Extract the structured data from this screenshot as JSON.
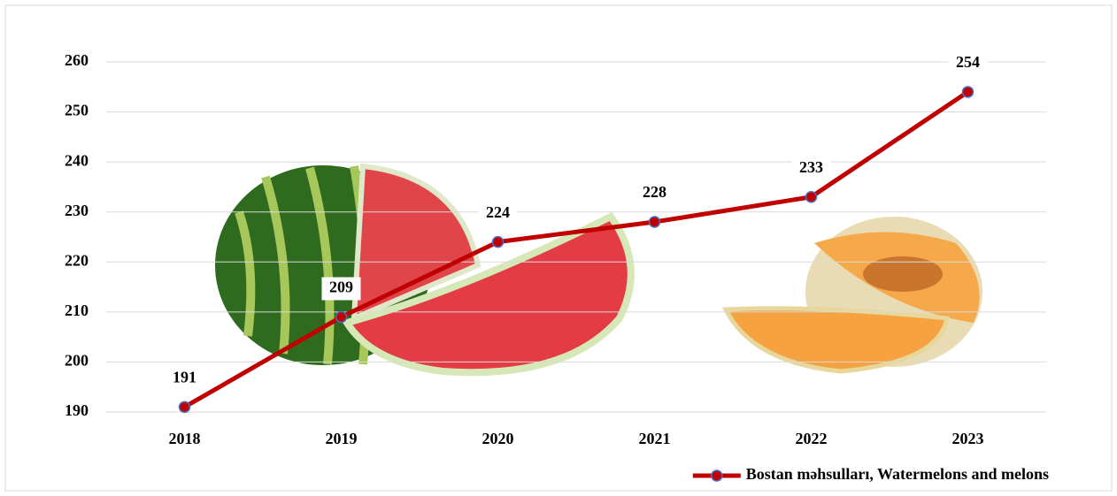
{
  "chart_data": {
    "type": "line",
    "categories": [
      "2018",
      "2019",
      "2020",
      "2021",
      "2022",
      "2023"
    ],
    "series": [
      {
        "name": "Bostan məhsulları, Watermelons and melons",
        "color": "#c00000",
        "marker_edge_color": "#4472c4",
        "values": [
          191,
          209,
          224,
          228,
          233,
          254
        ]
      }
    ],
    "ylim": [
      190,
      260
    ],
    "yticks": [
      190,
      200,
      210,
      220,
      230,
      240,
      250,
      260
    ],
    "grid": true,
    "legend": "bottom-right",
    "data_labels": true
  }
}
